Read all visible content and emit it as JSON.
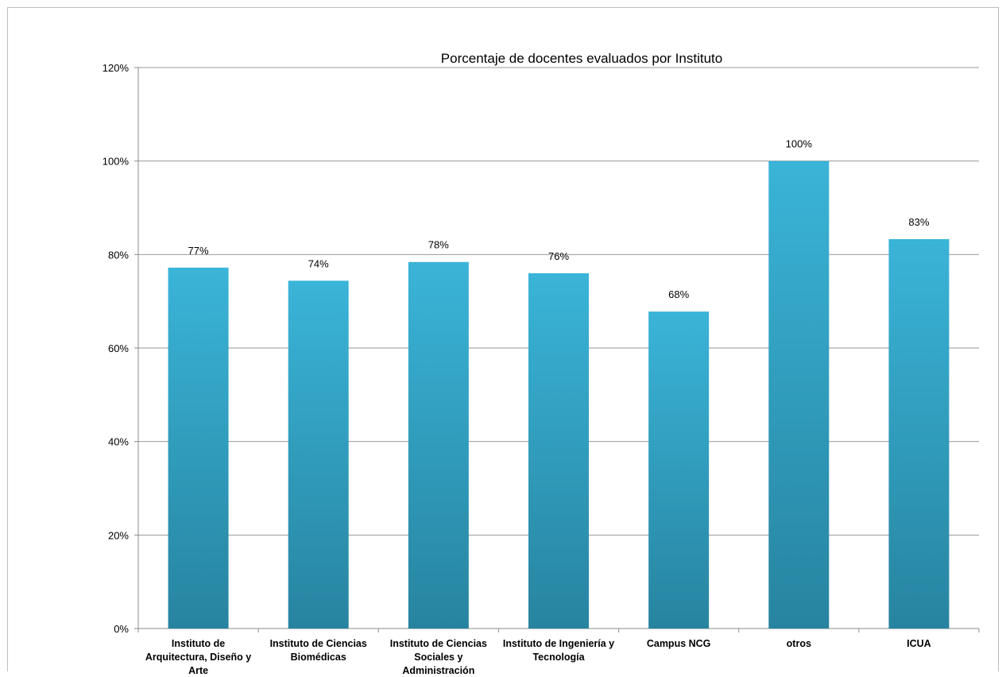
{
  "chart_data": {
    "type": "bar",
    "title": "Porcentaje de docentes evaluados por Instituto",
    "xlabel": "",
    "ylabel": "",
    "categories": [
      [
        "Instituto de",
        "Arquitectura, Diseño y",
        "Arte"
      ],
      [
        "Instituto de Ciencias",
        "Biomédicas"
      ],
      [
        "Instituto de Ciencias",
        "Sociales y",
        "Administración"
      ],
      [
        "Instituto de Ingeniería y",
        "Tecnología"
      ],
      [
        "Campus NCG"
      ],
      [
        "otros"
      ],
      [
        "ICUA"
      ]
    ],
    "values": [
      77.2,
      74.4,
      78.4,
      76.0,
      67.8,
      100,
      83.3
    ],
    "data_labels": [
      "77%",
      "74%",
      "78%",
      "76%",
      "68%",
      "100%",
      "83%"
    ],
    "ylim": [
      0,
      120
    ],
    "yticks": [
      0,
      20,
      40,
      60,
      80,
      100,
      120
    ],
    "ytick_labels": [
      "0%",
      "20%",
      "40%",
      "60%",
      "80%",
      "100%",
      "120%"
    ],
    "grid": true,
    "legend": "none",
    "colors": {
      "bar_top": "#3ab4d8",
      "bar_bottom": "#2784a0",
      "grid": "#9a9a9a",
      "axis": "#8c8c8c",
      "text": "#000000"
    }
  }
}
